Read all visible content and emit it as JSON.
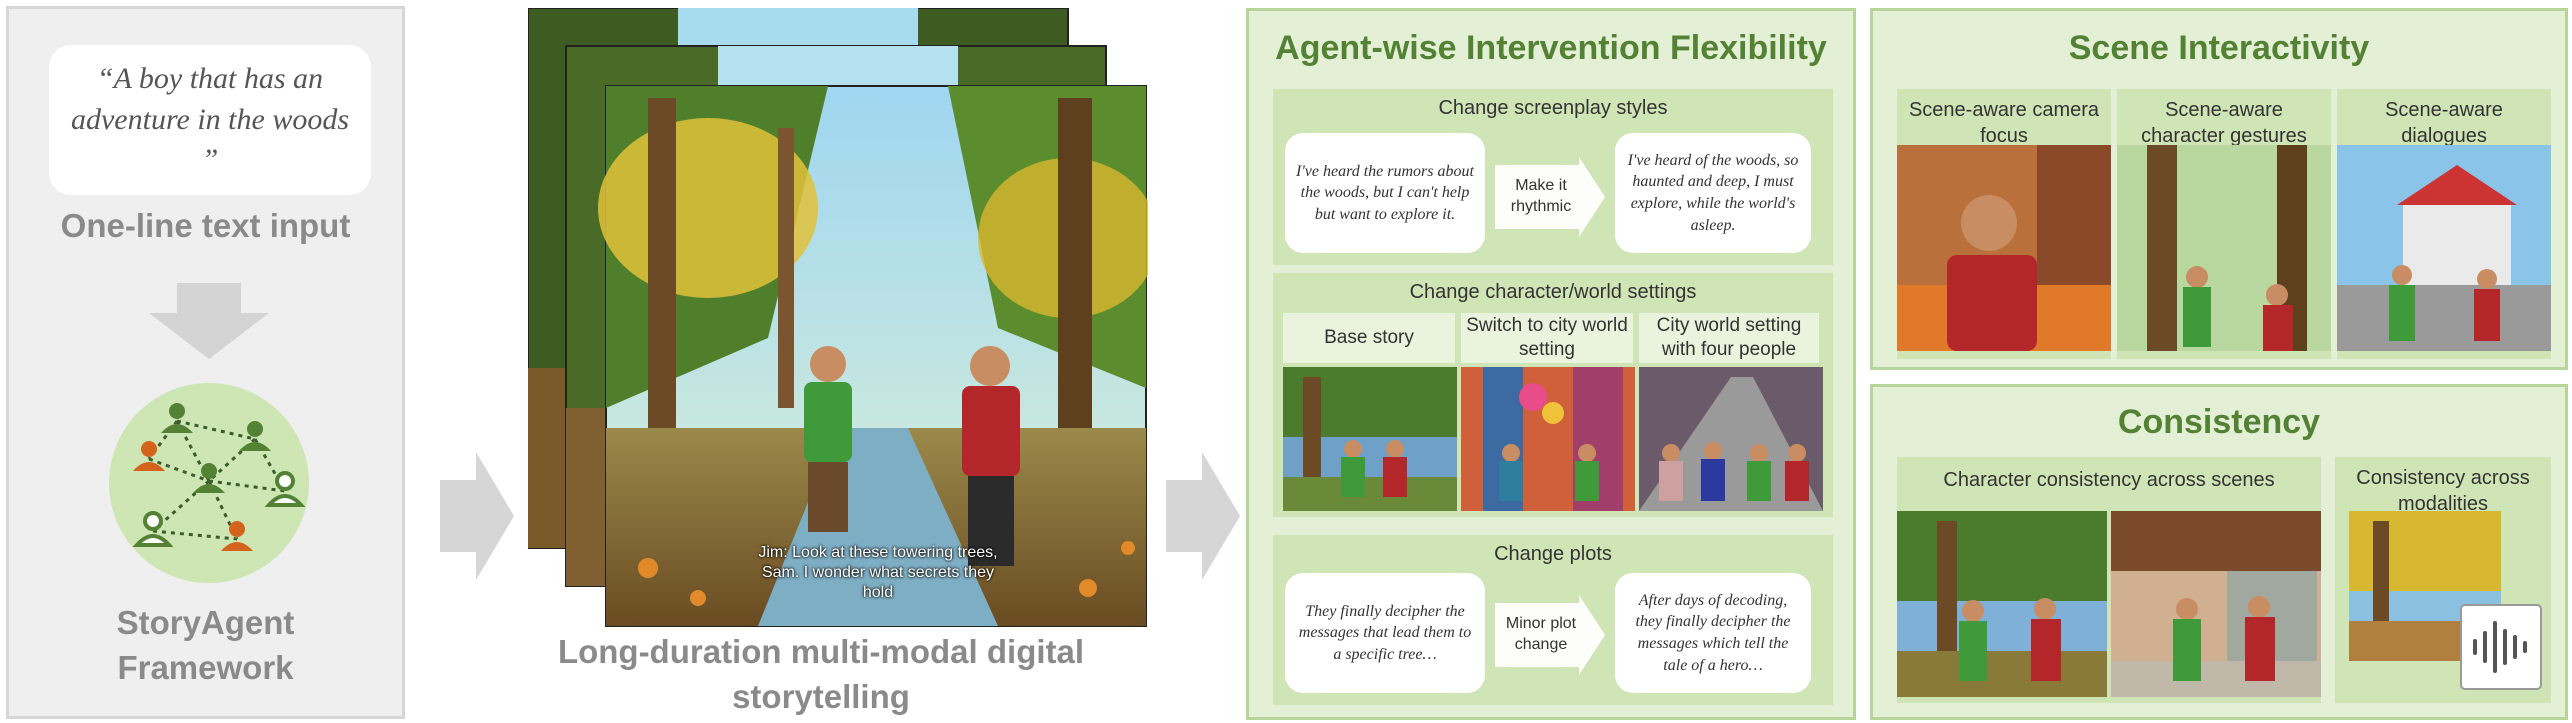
{
  "left": {
    "quote": "“A boy that has an adventure in the woods ”",
    "input_label": "One-line text input",
    "framework_label": "StoryAgent Framework"
  },
  "middle": {
    "subtitle": "Jim: Look at these towering trees, Sam. I wonder what secrets they hold",
    "caption": "Long-duration multi-modal digital storytelling"
  },
  "flex": {
    "title": "Agent-wise Intervention Flexibility",
    "screenplay": {
      "heading": "Change screenplay styles",
      "before": "I've heard the rumors about the woods, but I can't help but want to explore it.",
      "action": "Make it rhythmic",
      "after": "I've heard of the woods, so haunted and deep, I must explore, while the world's asleep."
    },
    "settings": {
      "heading": "Change character/world settings",
      "columns": [
        "Base story",
        "Switch to city world setting",
        "City world setting with four people"
      ]
    },
    "plots": {
      "heading": "Change plots",
      "before": "They finally decipher the messages that lead them to a specific tree…",
      "action": "Minor plot change",
      "after": "After days of decoding, they finally decipher the messages which tell the tale of a hero…"
    }
  },
  "scene": {
    "title": "Scene Interactivity",
    "columns": [
      "Scene-aware camera focus",
      "Scene-aware character gestures",
      "Scene-aware dialogues"
    ]
  },
  "consistency": {
    "title": "Consistency",
    "left_heading": "Character consistency across scenes",
    "right_heading": "Consistency across modalities"
  },
  "colors": {
    "accent_green": "#548235",
    "panel_green": "#e4f0d6",
    "sub_green": "#cfe5b6",
    "gray_text": "#8a8a8a",
    "agent_orange": "#d4631c"
  }
}
